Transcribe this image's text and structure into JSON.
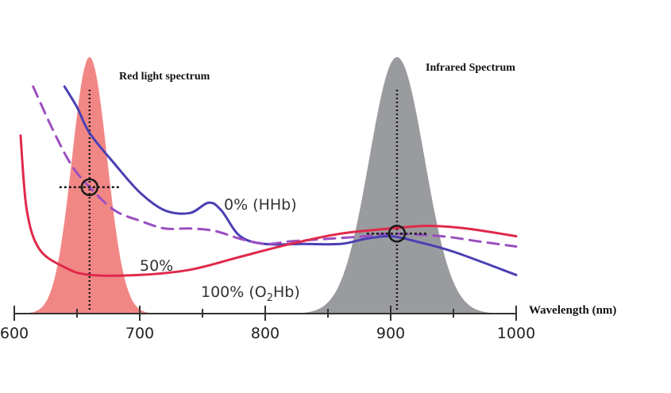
{
  "chart_data": {
    "type": "line",
    "xlabel": "Wavelength (nm)",
    "xlim": [
      600,
      1000
    ],
    "xticks": [
      600,
      700,
      800,
      900,
      1000
    ],
    "grid": false,
    "spectra": [
      {
        "name": "Red light spectrum",
        "peak": 660,
        "color": "#f07a78"
      },
      {
        "name": "Infrared Spectrum",
        "peak": 905,
        "color": "#8f9093"
      }
    ],
    "series": [
      {
        "name": "0% (HHb)",
        "color": "#4b3fb3",
        "points": [
          [
            640,
            0.88
          ],
          [
            650,
            0.8
          ],
          [
            660,
            0.7
          ],
          [
            680,
            0.58
          ],
          [
            700,
            0.47
          ],
          [
            720,
            0.4
          ],
          [
            740,
            0.39
          ],
          [
            755,
            0.43
          ],
          [
            765,
            0.4
          ],
          [
            780,
            0.3
          ],
          [
            800,
            0.27
          ],
          [
            830,
            0.27
          ],
          [
            860,
            0.27
          ],
          [
            880,
            0.29
          ],
          [
            900,
            0.3
          ],
          [
            920,
            0.28
          ],
          [
            950,
            0.24
          ],
          [
            1000,
            0.15
          ]
        ]
      },
      {
        "name": "50%",
        "color": "#9b4fc0",
        "dashed": true,
        "points": [
          [
            615,
            0.88
          ],
          [
            630,
            0.72
          ],
          [
            645,
            0.58
          ],
          [
            660,
            0.49
          ],
          [
            680,
            0.4
          ],
          [
            700,
            0.36
          ],
          [
            720,
            0.33
          ],
          [
            740,
            0.33
          ],
          [
            760,
            0.32
          ],
          [
            780,
            0.29
          ],
          [
            800,
            0.27
          ],
          [
            820,
            0.28
          ],
          [
            850,
            0.29
          ],
          [
            880,
            0.3
          ],
          [
            900,
            0.31
          ],
          [
            940,
            0.3
          ],
          [
            970,
            0.28
          ],
          [
            1000,
            0.26
          ]
        ]
      },
      {
        "name": "100% (O2Hb)",
        "label_main": "100% (O",
        "label_sub": "2",
        "label_end": "Hb)",
        "color": "#e0294a",
        "points": [
          [
            605,
            0.69
          ],
          [
            610,
            0.4
          ],
          [
            620,
            0.25
          ],
          [
            640,
            0.18
          ],
          [
            660,
            0.15
          ],
          [
            700,
            0.15
          ],
          [
            740,
            0.17
          ],
          [
            780,
            0.22
          ],
          [
            820,
            0.27
          ],
          [
            860,
            0.31
          ],
          [
            900,
            0.33
          ],
          [
            930,
            0.34
          ],
          [
            960,
            0.33
          ],
          [
            1000,
            0.3
          ]
        ]
      }
    ],
    "markers": [
      {
        "x": 660,
        "y": 0.49
      },
      {
        "x": 905,
        "y": 0.31
      }
    ]
  }
}
